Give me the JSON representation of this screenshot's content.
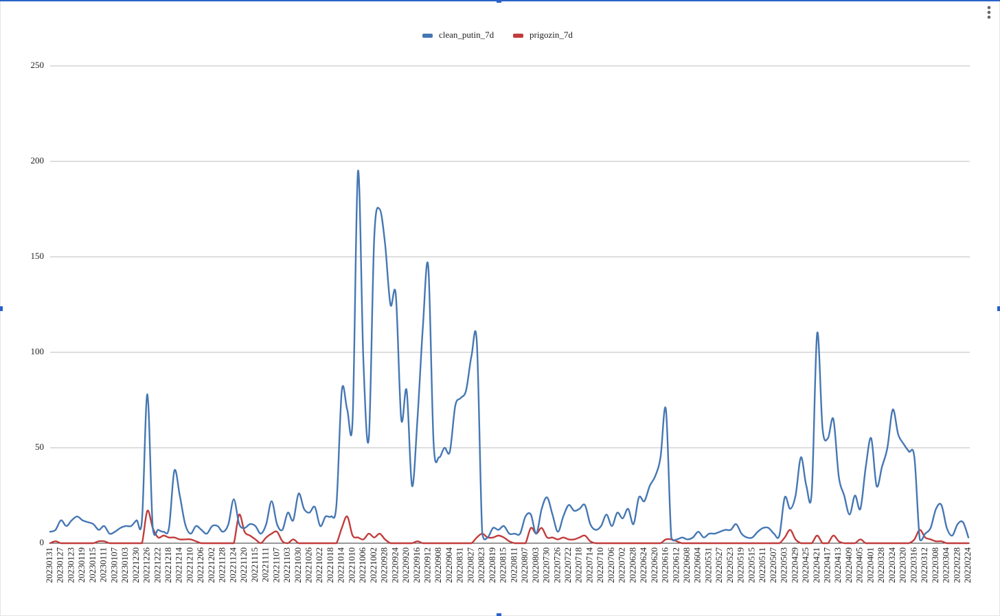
{
  "chart_data": {
    "type": "line",
    "categories": [
      "20230131",
      null,
      "20230127",
      null,
      "20230123",
      null,
      "20230119",
      null,
      "20230115",
      null,
      "20230111",
      null,
      "20230107",
      null,
      "20230103",
      null,
      "20221230",
      null,
      "20221226",
      null,
      "20221222",
      null,
      "20221218",
      null,
      "20221214",
      null,
      "20221210",
      null,
      "20221206",
      null,
      "20221202",
      null,
      "20221128",
      null,
      "20221124",
      null,
      "20221120",
      null,
      "20221115",
      null,
      "20221111",
      null,
      "20221107",
      null,
      "20221103",
      null,
      "20221030",
      null,
      "20221026",
      null,
      "20221022",
      null,
      "20221018",
      null,
      "20221014",
      null,
      "20221010",
      null,
      "20221006",
      null,
      "20221002",
      null,
      "20220928",
      null,
      "20220924",
      null,
      "20220920",
      null,
      "20220916",
      null,
      "20220912",
      null,
      "20220908",
      null,
      "20220904",
      null,
      "20220831",
      null,
      "20220827",
      null,
      "20220823",
      null,
      "20220819",
      null,
      "20220815",
      null,
      "20220811",
      null,
      "20220807",
      null,
      "20220803",
      null,
      "20220730",
      null,
      "20220726",
      null,
      "20220722",
      null,
      "20220718",
      null,
      "20220714",
      null,
      "20220710",
      null,
      "20220706",
      null,
      "20220702",
      null,
      "20220628",
      null,
      "20220624",
      null,
      "20220620",
      null,
      "20220616",
      null,
      "20220612",
      null,
      "20220608",
      null,
      "20220604",
      null,
      "20220531",
      null,
      "20220527",
      null,
      "20220523",
      null,
      "20220519",
      null,
      "20220515",
      null,
      "20220511",
      null,
      "20220507",
      null,
      "20220503",
      null,
      "20220429",
      null,
      "20220425",
      null,
      "20220421",
      null,
      "20220417",
      null,
      "20220413",
      null,
      "20220409",
      null,
      "20220405",
      null,
      "20220401",
      null,
      "20220328",
      null,
      "20220324",
      null,
      "20220320",
      null,
      "20220316",
      null,
      "20220312",
      null,
      "20220308",
      null,
      "20220304",
      null,
      "20220228",
      null,
      "20220224"
    ],
    "series": [
      {
        "name": "clean_putin_7d",
        "color": "#4577b3",
        "values": [
          6,
          7,
          12,
          9,
          12,
          14,
          12,
          11,
          10,
          7,
          9,
          5,
          6,
          8,
          9,
          9,
          12,
          12,
          78,
          8,
          7,
          6,
          8,
          38,
          25,
          10,
          5,
          9,
          7,
          5,
          9,
          9,
          6,
          10,
          23,
          10,
          8,
          10,
          9,
          5,
          10,
          22,
          10,
          7,
          16,
          12,
          26,
          18,
          16,
          19,
          9,
          14,
          14,
          20,
          80,
          70,
          65,
          195,
          95,
          55,
          160,
          175,
          157,
          125,
          130,
          65,
          80,
          30,
          65,
          113,
          145,
          52,
          45,
          50,
          48,
          72,
          76,
          80,
          98,
          105,
          5,
          3,
          8,
          7,
          9,
          5,
          5,
          5,
          14,
          15,
          5,
          18,
          24,
          15,
          6,
          14,
          20,
          17,
          18,
          20,
          10,
          7,
          9,
          15,
          9,
          16,
          13,
          18,
          10,
          24,
          22,
          30,
          35,
          45,
          70,
          3,
          2,
          3,
          2,
          3,
          6,
          3,
          5,
          5,
          6,
          7,
          7,
          10,
          5,
          3,
          3,
          6,
          8,
          8,
          5,
          4,
          24,
          18,
          25,
          45,
          30,
          27,
          110,
          60,
          55,
          65,
          35,
          25,
          15,
          25,
          18,
          40,
          55,
          30,
          40,
          50,
          70,
          57,
          52,
          48,
          45,
          2,
          5,
          8,
          18,
          20,
          8,
          4,
          10,
          11,
          3
        ]
      },
      {
        "name": "prigozin_7d",
        "color": "#c23c3c",
        "values": [
          0,
          1,
          0,
          0,
          0,
          0,
          0,
          0,
          0,
          1,
          1,
          0,
          0,
          0,
          0,
          0,
          0,
          0,
          17,
          8,
          3,
          4,
          3,
          3,
          2,
          2,
          2,
          1,
          0,
          0,
          0,
          0,
          0,
          0,
          0,
          15,
          6,
          4,
          2,
          0,
          3,
          5,
          6,
          1,
          0,
          2,
          0,
          0,
          0,
          0,
          0,
          0,
          0,
          0,
          8,
          14,
          4,
          3,
          2,
          5,
          3,
          5,
          2,
          0,
          0,
          0,
          0,
          0,
          1,
          0,
          0,
          0,
          0,
          0,
          0,
          0,
          0,
          0,
          0,
          3,
          5,
          3,
          3,
          4,
          3,
          1,
          0,
          0,
          0,
          8,
          5,
          8,
          3,
          3,
          2,
          3,
          2,
          2,
          3,
          4,
          1,
          0,
          0,
          0,
          0,
          0,
          0,
          0,
          0,
          0,
          0,
          0,
          0,
          0,
          2,
          2,
          1,
          0,
          0,
          0,
          0,
          0,
          0,
          0,
          0,
          0,
          0,
          0,
          0,
          0,
          0,
          0,
          0,
          0,
          0,
          0,
          3,
          7,
          2,
          0,
          0,
          0,
          4,
          0,
          0,
          4,
          1,
          0,
          0,
          0,
          2,
          0,
          0,
          0,
          0,
          0,
          0,
          0,
          0,
          0,
          2,
          7,
          3,
          2,
          1,
          1,
          0,
          0,
          0,
          0,
          0
        ]
      }
    ],
    "ylim": [
      0,
      250
    ],
    "yticks": [
      0,
      50,
      100,
      150,
      200,
      250
    ],
    "grid": true,
    "legend": "top"
  }
}
